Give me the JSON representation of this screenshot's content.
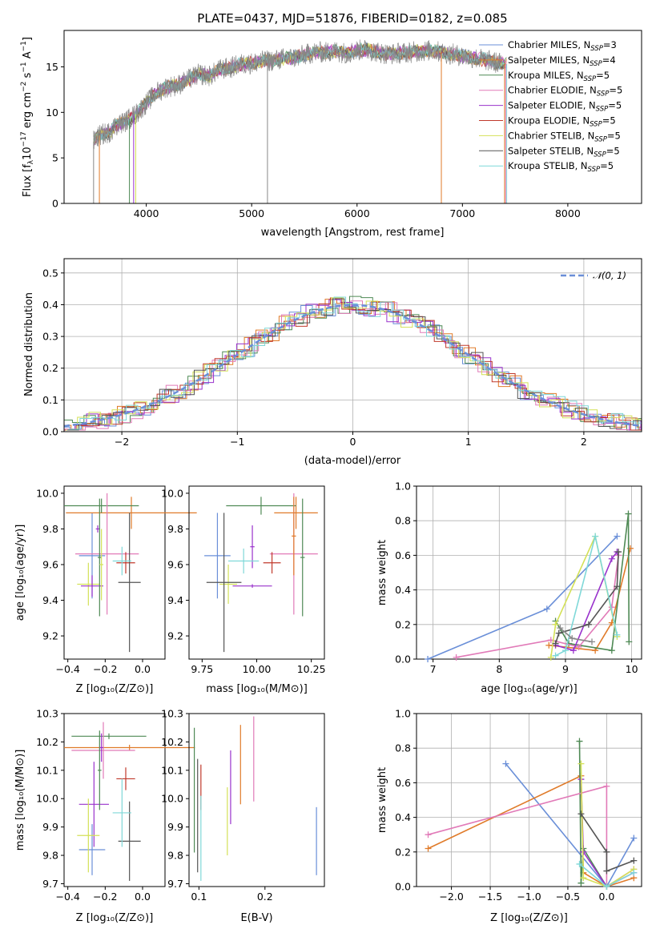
{
  "colors": [
    "#6a8fd8",
    "#e07b2a",
    "#4f8a55",
    "#e17ab8",
    "#9932cc",
    "#c0392b",
    "#d4e157",
    "#555555",
    "#7fd8d8",
    "#888888"
  ],
  "chart_data": [
    {
      "id": "spectrum",
      "type": "line",
      "title": "PLATE=0437, MJD=51876, FIBERID=0182, z=0.085",
      "xlabel": "wavelength [Angstrom, rest frame]",
      "ylabel": "Flux [fλ10⁻¹⁷ erg cm⁻² s⁻¹ A⁻¹]",
      "xlim": [
        3220,
        8700
      ],
      "ylim": [
        0,
        19
      ],
      "xticks": [
        4000,
        5000,
        6000,
        7000,
        8000
      ],
      "yticks": [
        0,
        5,
        10,
        15
      ],
      "spectrum_x": [
        3500,
        3560,
        3650,
        3700,
        3800,
        3900,
        4000,
        4100,
        4200,
        4300,
        4400,
        4500,
        4600,
        4700,
        4800,
        4900,
        5000,
        5100,
        5200,
        5300,
        5400,
        5500,
        5600,
        5700,
        5800,
        5900,
        6000,
        6100,
        6200,
        6300,
        6400,
        6500,
        6600,
        6700,
        6800,
        6900,
        7000,
        7100,
        7200,
        7300,
        7400
      ],
      "spectrum_y": [
        6.8,
        7.5,
        7.8,
        8.5,
        9.0,
        9.8,
        11.0,
        12.2,
        12.8,
        13.0,
        13.6,
        14.2,
        14.0,
        14.7,
        14.9,
        15.3,
        15.4,
        15.6,
        15.7,
        15.9,
        16.0,
        16.3,
        16.6,
        16.6,
        16.7,
        16.5,
        16.8,
        16.9,
        16.6,
        16.4,
        16.5,
        16.6,
        16.7,
        16.8,
        16.6,
        16.4,
        16.2,
        16.0,
        15.8,
        15.5,
        15.3
      ],
      "legend": [
        "Chabrier MILES, N_SSP=3",
        "Salpeter MILES, N_SSP=4",
        "Kroupa MILES, N_SSP=5",
        "Chabrier ELODIE, N_SSP=5",
        "Salpeter ELODIE, N_SSP=5",
        "Kroupa ELODIE, N_SSP=5",
        "Chabrier STELIB, N_SSP=5",
        "Salpeter STELIB, N_SSP=5",
        "Kroupa STELIB, N_SSP=5"
      ],
      "legend_sub": "SSP"
    },
    {
      "id": "residuals",
      "type": "histogram",
      "xlabel": "(data-model)/error",
      "ylabel": "Normed distribution",
      "xlim": [
        -2.5,
        2.5
      ],
      "ylim": [
        0,
        0.545
      ],
      "xticks": [
        -2,
        -1,
        0,
        1,
        2
      ],
      "yticks": [
        0.0,
        0.1,
        0.2,
        0.3,
        0.4,
        0.5
      ],
      "bin_width": 0.1,
      "legend": [
        "𝒩(0, 1)"
      ]
    },
    {
      "id": "age-vs-Z",
      "type": "scatter",
      "xlabel": "Z [log₁₀(Z/Z⊙)]",
      "ylabel": "age  [log₁₀(age/yr)]",
      "xlim": [
        -0.42,
        0.12
      ],
      "ylim": [
        9.07,
        10.04
      ],
      "xticks": [
        -0.4,
        -0.2,
        0.0
      ],
      "yticks": [
        9.2,
        9.4,
        9.6,
        9.8,
        10.0
      ],
      "points": [
        {
          "x": -0.27,
          "y": 9.65,
          "xerr": 0.07,
          "yerr": 0.24,
          "c": 0
        },
        {
          "x": -0.06,
          "y": 9.89,
          "xerr": 0.35,
          "yerr": 0.09,
          "c": 1
        },
        {
          "x": -0.22,
          "y": 9.93,
          "xerr": 0.2,
          "yerr": 0.04,
          "c": 2
        },
        {
          "x": -0.19,
          "y": 9.66,
          "xerr": 0.17,
          "yerr": 0.34,
          "c": 3
        },
        {
          "x": -0.24,
          "y": 9.8,
          "xerr": 0.01,
          "yerr": 0.02,
          "c": 4
        },
        {
          "x": -0.09,
          "y": 9.61,
          "xerr": 0.05,
          "yerr": 0.06,
          "c": 5
        },
        {
          "x": -0.29,
          "y": 9.49,
          "xerr": 0.06,
          "yerr": 0.12,
          "c": 6
        },
        {
          "x": -0.07,
          "y": 9.5,
          "xerr": 0.06,
          "yerr": 0.39,
          "c": 7
        },
        {
          "x": -0.11,
          "y": 9.62,
          "xerr": 0.05,
          "yerr": 0.08,
          "c": 8
        },
        {
          "x": -0.27,
          "y": 9.48,
          "xerr": 0.06,
          "yerr": 0.06,
          "c": 4
        },
        {
          "x": -0.23,
          "y": 9.64,
          "xerr": 0.01,
          "yerr": 0.33,
          "c": 2
        },
        {
          "x": -0.22,
          "y": 9.6,
          "xerr": 0.01,
          "yerr": 0.2,
          "c": 6
        }
      ]
    },
    {
      "id": "age-vs-mass",
      "type": "scatter",
      "xlabel": "mass [log₁₀(M/M⊙)]",
      "ylabel": "",
      "xlim": [
        9.69,
        10.31
      ],
      "ylim": [
        9.07,
        10.04
      ],
      "xticks": [
        9.75,
        10.0,
        10.25
      ],
      "yticks": [
        9.2,
        9.4,
        9.6,
        9.8,
        10.0
      ],
      "points": [
        {
          "x": 9.82,
          "y": 9.65,
          "xerr": 0.06,
          "yerr": 0.24,
          "c": 0
        },
        {
          "x": 10.18,
          "y": 9.89,
          "xerr": 0.1,
          "yerr": 0.09,
          "c": 1
        },
        {
          "x": 10.02,
          "y": 9.93,
          "xerr": 0.16,
          "yerr": 0.05,
          "c": 2
        },
        {
          "x": 10.17,
          "y": 9.66,
          "xerr": 0.11,
          "yerr": 0.34,
          "c": 3
        },
        {
          "x": 9.98,
          "y": 9.7,
          "xerr": 0.01,
          "yerr": 0.12,
          "c": 4
        },
        {
          "x": 10.07,
          "y": 9.61,
          "xerr": 0.04,
          "yerr": 0.06,
          "c": 5
        },
        {
          "x": 9.87,
          "y": 9.49,
          "xerr": 0.04,
          "yerr": 0.11,
          "c": 6
        },
        {
          "x": 9.85,
          "y": 9.5,
          "xerr": 0.08,
          "yerr": 0.39,
          "c": 7
        },
        {
          "x": 9.94,
          "y": 9.62,
          "xerr": 0.07,
          "yerr": 0.07,
          "c": 8
        },
        {
          "x": 9.98,
          "y": 9.48,
          "xerr": 0.09,
          "yerr": 0.01,
          "c": 4
        },
        {
          "x": 10.21,
          "y": 9.64,
          "xerr": 0.01,
          "yerr": 0.33,
          "c": 2
        },
        {
          "x": 10.17,
          "y": 9.76,
          "xerr": 0.01,
          "yerr": 0.22,
          "c": 1
        }
      ]
    },
    {
      "id": "weight-vs-age",
      "type": "line",
      "xlabel": "age  [log₁₀(age/yr)]",
      "ylabel": "mass weight",
      "xlim": [
        6.75,
        10.15
      ],
      "ylim": [
        0,
        1
      ],
      "xticks": [
        7,
        8,
        9,
        10
      ],
      "yticks": [
        0.0,
        0.2,
        0.4,
        0.6,
        0.8,
        1.0
      ],
      "series": [
        {
          "c": 0,
          "x": [
            6.92,
            8.72,
            9.78
          ],
          "y": [
            0.0,
            0.29,
            0.71
          ]
        },
        {
          "c": 1,
          "x": [
            8.75,
            9.45,
            9.7,
            9.98
          ],
          "y": [
            0.08,
            0.05,
            0.21,
            0.64
          ]
        },
        {
          "c": 2,
          "x": [
            8.85,
            9.05,
            9.7,
            9.95,
            9.96
          ],
          "y": [
            0.22,
            0.09,
            0.05,
            0.84,
            0.1
          ]
        },
        {
          "c": 3,
          "x": [
            7.35,
            8.78,
            9.2,
            9.7,
            9.8
          ],
          "y": [
            0.01,
            0.11,
            0.07,
            0.3,
            0.6
          ]
        },
        {
          "c": 4,
          "x": [
            8.85,
            9.12,
            9.7,
            9.78
          ],
          "y": [
            0.08,
            0.05,
            0.58,
            0.62
          ]
        },
        {
          "c": 6,
          "x": [
            8.78,
            8.85,
            9.45,
            9.78
          ],
          "y": [
            0.01,
            0.2,
            0.71,
            0.13
          ]
        },
        {
          "c": 7,
          "x": [
            8.85,
            8.9,
            9.35,
            9.78,
            9.8
          ],
          "y": [
            0.09,
            0.15,
            0.2,
            0.42,
            0.62
          ]
        },
        {
          "c": 8,
          "x": [
            8.85,
            9.0,
            9.45,
            9.78
          ],
          "y": [
            0.02,
            0.05,
            0.71,
            0.14
          ]
        },
        {
          "c": 9,
          "x": [
            8.92,
            9.1,
            9.4
          ],
          "y": [
            0.18,
            0.12,
            0.1
          ]
        }
      ]
    },
    {
      "id": "mass-vs-Z",
      "type": "scatter",
      "xlabel": "Z [log₁₀(Z/Z⊙)]",
      "ylabel": "mass [log₁₀(M/M⊙)]",
      "xlim": [
        -0.42,
        0.12
      ],
      "ylim": [
        9.69,
        10.3
      ],
      "xticks": [
        -0.4,
        -0.2,
        0.0
      ],
      "yticks": [
        9.7,
        9.8,
        9.9,
        10.0,
        10.1,
        10.2,
        10.3
      ],
      "points": [
        {
          "x": -0.27,
          "y": 9.82,
          "xerr": 0.07,
          "yerr": 0.09,
          "c": 0
        },
        {
          "x": -0.07,
          "y": 10.18,
          "xerr": 0.35,
          "yerr": 0.01,
          "c": 1
        },
        {
          "x": -0.18,
          "y": 10.22,
          "xerr": 0.2,
          "yerr": 0.01,
          "c": 2
        },
        {
          "x": -0.21,
          "y": 10.17,
          "xerr": 0.17,
          "yerr": 0.1,
          "c": 3
        },
        {
          "x": -0.26,
          "y": 9.98,
          "xerr": 0.08,
          "yerr": 0.15,
          "c": 4
        },
        {
          "x": -0.09,
          "y": 10.07,
          "xerr": 0.05,
          "yerr": 0.04,
          "c": 5
        },
        {
          "x": -0.29,
          "y": 9.87,
          "xerr": 0.06,
          "yerr": 0.13,
          "c": 6
        },
        {
          "x": -0.07,
          "y": 9.85,
          "xerr": 0.06,
          "yerr": 0.14,
          "c": 7
        },
        {
          "x": -0.11,
          "y": 9.95,
          "xerr": 0.05,
          "yerr": 0.12,
          "c": 8
        },
        {
          "x": -0.23,
          "y": 10.1,
          "xerr": 0.01,
          "yerr": 0.14,
          "c": 2
        },
        {
          "x": -0.22,
          "y": 10.18,
          "xerr": 0.01,
          "yerr": 0.05,
          "c": 4
        }
      ]
    },
    {
      "id": "mass-vs-EBV",
      "type": "scatter",
      "xlabel": "E(B-V)",
      "ylabel": "",
      "xlim": [
        0.085,
        0.29
      ],
      "ylim": [
        9.69,
        10.3
      ],
      "xticks": [
        0.1,
        0.2
      ],
      "yticks": [
        9.7,
        9.8,
        9.9,
        10.0,
        10.1,
        10.2,
        10.3
      ],
      "points": [
        {
          "x": 0.278,
          "y": 9.85,
          "xerr": 0,
          "yerr": 0.12,
          "c": 0
        },
        {
          "x": 0.163,
          "y": 10.12,
          "xerr": 0,
          "yerr": 0.14,
          "c": 1
        },
        {
          "x": 0.093,
          "y": 10.03,
          "xerr": 0,
          "yerr": 0.22,
          "c": 2
        },
        {
          "x": 0.183,
          "y": 10.14,
          "xerr": 0,
          "yerr": 0.15,
          "c": 3
        },
        {
          "x": 0.148,
          "y": 10.04,
          "xerr": 0,
          "yerr": 0.13,
          "c": 4
        },
        {
          "x": 0.103,
          "y": 10.04,
          "xerr": 0,
          "yerr": 0.08,
          "c": 5
        },
        {
          "x": 0.143,
          "y": 9.92,
          "xerr": 0,
          "yerr": 0.12,
          "c": 6
        },
        {
          "x": 0.098,
          "y": 9.94,
          "xerr": 0,
          "yerr": 0.2,
          "c": 7
        },
        {
          "x": 0.103,
          "y": 9.86,
          "xerr": 0,
          "yerr": 0.15,
          "c": 8
        }
      ]
    },
    {
      "id": "weight-vs-Z",
      "type": "line",
      "xlabel": "Z [log₁₀(Z/Z⊙)]",
      "ylabel": "mass weight",
      "xlim": [
        -2.45,
        0.45
      ],
      "ylim": [
        0,
        1
      ],
      "xticks": [
        -2.0,
        -1.5,
        -1.0,
        -0.5,
        0.0
      ],
      "yticks": [
        0.0,
        0.2,
        0.4,
        0.6,
        0.8,
        1.0
      ],
      "series": [
        {
          "c": 0,
          "x": [
            -1.3,
            0.0,
            0.35
          ],
          "y": [
            0.71,
            0.0,
            0.28
          ]
        },
        {
          "c": 1,
          "x": [
            -2.3,
            -0.33,
            -0.3,
            0.0,
            0.35
          ],
          "y": [
            0.22,
            0.64,
            0.08,
            0.0,
            0.05
          ]
        },
        {
          "c": 2,
          "x": [
            -0.35,
            -0.33,
            -0.3,
            0.0
          ],
          "y": [
            0.84,
            0.02,
            0.22,
            0.0
          ]
        },
        {
          "c": 3,
          "x": [
            -2.3,
            0.0,
            0.0,
            0.35
          ],
          "y": [
            0.3,
            0.58,
            0.0,
            0.1
          ]
        },
        {
          "c": 4,
          "x": [
            -0.33,
            -0.3,
            0.0,
            0.35
          ],
          "y": [
            0.62,
            0.2,
            0.0,
            0.08
          ]
        },
        {
          "c": 6,
          "x": [
            -0.33,
            -0.3,
            0.0,
            0.35
          ],
          "y": [
            0.71,
            0.05,
            0.0,
            0.1
          ]
        },
        {
          "c": 7,
          "x": [
            -0.33,
            0.0,
            0.0,
            0.35
          ],
          "y": [
            0.42,
            0.2,
            0.09,
            0.15
          ]
        },
        {
          "c": 8,
          "x": [
            -0.35,
            0.0,
            0.35
          ],
          "y": [
            0.13,
            0.0,
            0.08
          ]
        }
      ]
    }
  ]
}
